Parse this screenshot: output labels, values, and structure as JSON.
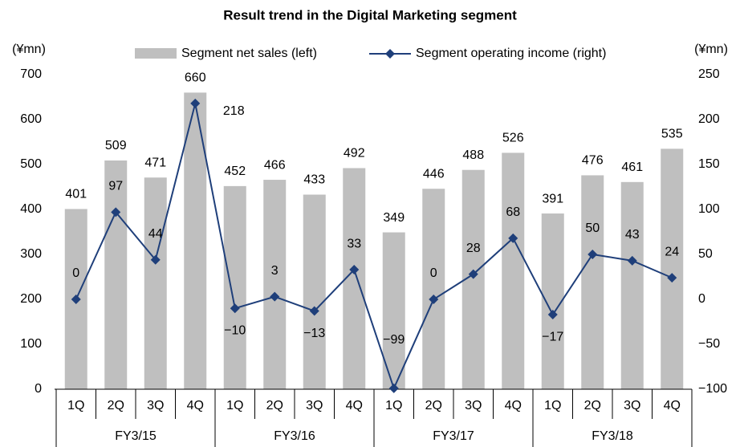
{
  "chart_data": {
    "type": "bar_line",
    "title": "Result trend in the Digital Marketing segment",
    "y_unit": "(¥mn)",
    "y2_unit": "(¥mn)",
    "categories": [
      "1Q",
      "2Q",
      "3Q",
      "4Q",
      "1Q",
      "2Q",
      "3Q",
      "4Q",
      "1Q",
      "2Q",
      "3Q",
      "4Q",
      "1Q",
      "2Q",
      "3Q",
      "4Q"
    ],
    "groups": [
      "FY3/15",
      "FY3/16",
      "FY3/17",
      "FY3/18"
    ],
    "series": [
      {
        "name": "Segment net sales (left)",
        "color": "#bfbfbf",
        "axis": "y",
        "values": [
          401,
          509,
          471,
          660,
          452,
          466,
          433,
          492,
          349,
          446,
          488,
          526,
          391,
          476,
          461,
          535
        ]
      },
      {
        "name": "Segment operating income (right)",
        "color": "#1f3f7a",
        "axis": "y2",
        "values": [
          0,
          97,
          44,
          218,
          -10,
          3,
          -13,
          33,
          -99,
          0,
          28,
          68,
          -17,
          50,
          43,
          24
        ],
        "value_labels": [
          "0",
          "97",
          "44",
          "218",
          "−10",
          "3",
          "−13",
          "33",
          "−99",
          "0",
          "28",
          "68",
          "−17",
          "50",
          "43",
          "24"
        ]
      }
    ],
    "ylim": [
      0,
      700
    ],
    "yticks": [
      0,
      100,
      200,
      300,
      400,
      500,
      600,
      700
    ],
    "y2lim": [
      -100,
      250
    ],
    "y2ticks": [
      {
        "value": -100,
        "label": "−100"
      },
      {
        "value": -50,
        "label": "−50"
      },
      0,
      50,
      100,
      150,
      200,
      250
    ]
  }
}
